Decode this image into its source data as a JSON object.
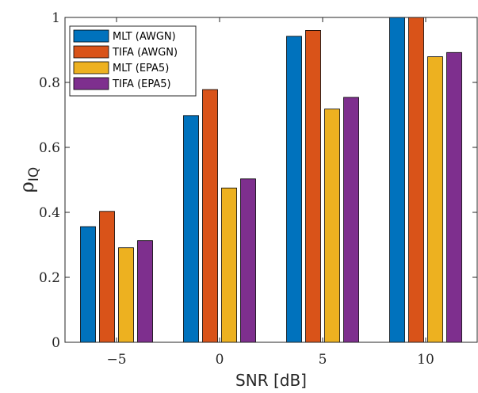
{
  "chart_data": {
    "type": "bar",
    "categories": [
      "−5",
      "0",
      "5",
      "10"
    ],
    "x": [
      -5,
      0,
      5,
      10
    ],
    "series": [
      {
        "name": "MLT (AWGN)",
        "color": "#0072BD",
        "values": [
          0.356,
          0.698,
          0.942,
          1.0
        ]
      },
      {
        "name": "TIFA (AWGN)",
        "color": "#D95319",
        "values": [
          0.403,
          0.778,
          0.96,
          1.0
        ]
      },
      {
        "name": "MLT (EPA5)",
        "color": "#EDB120",
        "values": [
          0.291,
          0.475,
          0.718,
          0.879
        ]
      },
      {
        "name": "TIFA (EPA5)",
        "color": "#7E2F8E",
        "values": [
          0.313,
          0.503,
          0.754,
          0.892
        ]
      }
    ],
    "xlabel": "SNR [dB]",
    "ylabel_symbol": "ρ",
    "ylabel_subscript": "IQ",
    "ylim": [
      0,
      1
    ],
    "yticks": [
      0,
      0.2,
      0.4,
      0.6,
      0.8,
      1
    ],
    "ytick_labels": [
      "0",
      "0.2",
      "0.4",
      "0.6",
      "0.8",
      "1"
    ],
    "grid": false,
    "legend_position": "top-left"
  }
}
